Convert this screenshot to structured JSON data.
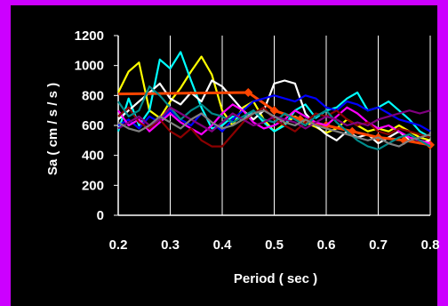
{
  "chart_data": {
    "type": "line",
    "title": "",
    "xlabel": "Period  ( sec )",
    "ylabel": "Sa  ( cm / s / s )",
    "xlim": [
      0.2,
      0.8
    ],
    "ylim": [
      0,
      1200
    ],
    "xticks": [
      "0.2",
      "0.3",
      "0.4",
      "0.5",
      "0.6",
      "0.7",
      "0.8"
    ],
    "yticks": [
      "0",
      "200",
      "400",
      "600",
      "800",
      "1000",
      "1200"
    ],
    "grid": "vertical",
    "colors": {
      "background": "#000000",
      "border": "#CC00FF",
      "axis": "#FFFFFF",
      "grid": "#FFFFFF"
    },
    "series": [
      {
        "color": "#FFFF00",
        "x": [
          0.2,
          0.22,
          0.24,
          0.26,
          0.28,
          0.3,
          0.32,
          0.34,
          0.36,
          0.38,
          0.4,
          0.42,
          0.44,
          0.46,
          0.48,
          0.5,
          0.52,
          0.54,
          0.56,
          0.58,
          0.6,
          0.62,
          0.64,
          0.66,
          0.68,
          0.7,
          0.72,
          0.74,
          0.76,
          0.78,
          0.8
        ],
        "y": [
          820,
          960,
          1020,
          700,
          650,
          760,
          850,
          960,
          1060,
          940,
          700,
          600,
          720,
          760,
          640,
          560,
          610,
          660,
          620,
          590,
          550,
          580,
          640,
          600,
          560,
          580,
          560,
          600,
          560,
          520,
          500
        ]
      },
      {
        "color": "#00FFFF",
        "x": [
          0.2,
          0.22,
          0.24,
          0.26,
          0.28,
          0.3,
          0.32,
          0.34,
          0.36,
          0.38,
          0.4,
          0.42,
          0.44,
          0.46,
          0.48,
          0.5,
          0.52,
          0.54,
          0.56,
          0.58,
          0.6,
          0.62,
          0.64,
          0.66,
          0.68,
          0.7,
          0.72,
          0.74,
          0.76,
          0.78,
          0.8
        ],
        "y": [
          560,
          780,
          600,
          700,
          1040,
          980,
          1090,
          900,
          720,
          580,
          600,
          660,
          640,
          700,
          620,
          560,
          600,
          700,
          740,
          650,
          700,
          720,
          780,
          820,
          700,
          720,
          760,
          700,
          640,
          560,
          520
        ]
      },
      {
        "color": "#FFFFFF",
        "x": [
          0.2,
          0.22,
          0.24,
          0.26,
          0.28,
          0.3,
          0.32,
          0.34,
          0.36,
          0.38,
          0.4,
          0.42,
          0.44,
          0.46,
          0.48,
          0.5,
          0.52,
          0.54,
          0.56,
          0.58,
          0.6,
          0.62,
          0.64,
          0.66,
          0.68,
          0.7,
          0.72,
          0.74,
          0.76,
          0.78,
          0.8
        ],
        "y": [
          640,
          700,
          760,
          820,
          880,
          780,
          740,
          820,
          760,
          900,
          860,
          780,
          700,
          640,
          700,
          880,
          900,
          880,
          680,
          600,
          540,
          500,
          560,
          520,
          540,
          480,
          520,
          560,
          500,
          480,
          500
        ]
      },
      {
        "color": "#FF4500",
        "x": [
          0.2,
          0.45,
          0.5,
          0.55,
          0.6,
          0.65,
          0.7,
          0.75,
          0.8
        ],
        "y": [
          810,
          820,
          700,
          640,
          600,
          560,
          520,
          500,
          470
        ]
      },
      {
        "color": "#0000FF",
        "x": [
          0.2,
          0.22,
          0.24,
          0.26,
          0.28,
          0.3,
          0.32,
          0.34,
          0.36,
          0.38,
          0.4,
          0.42,
          0.44,
          0.46,
          0.48,
          0.5,
          0.52,
          0.54,
          0.56,
          0.58,
          0.6,
          0.62,
          0.64,
          0.66,
          0.68,
          0.7,
          0.72,
          0.74,
          0.76,
          0.78,
          0.8
        ],
        "y": [
          600,
          640,
          580,
          660,
          620,
          700,
          640,
          600,
          680,
          620,
          560,
          640,
          700,
          760,
          780,
          800,
          780,
          760,
          800,
          780,
          720,
          700,
          760,
          740,
          700,
          720,
          680,
          640,
          620,
          600,
          560
        ]
      },
      {
        "color": "#FF00FF",
        "x": [
          0.2,
          0.22,
          0.24,
          0.26,
          0.28,
          0.3,
          0.32,
          0.34,
          0.36,
          0.38,
          0.4,
          0.42,
          0.44,
          0.46,
          0.48,
          0.5,
          0.52,
          0.54,
          0.56,
          0.58,
          0.6,
          0.62,
          0.64,
          0.66,
          0.68,
          0.7,
          0.72,
          0.74,
          0.76,
          0.78,
          0.8
        ],
        "y": [
          700,
          600,
          640,
          560,
          620,
          680,
          620,
          580,
          540,
          600,
          680,
          740,
          700,
          620,
          580,
          600,
          640,
          700,
          660,
          620,
          600,
          660,
          720,
          680,
          620,
          580,
          600,
          560,
          520,
          500,
          480
        ]
      },
      {
        "color": "#8B0000",
        "x": [
          0.2,
          0.22,
          0.24,
          0.26,
          0.28,
          0.3,
          0.32,
          0.34,
          0.36,
          0.38,
          0.4,
          0.42,
          0.44,
          0.46,
          0.48,
          0.5,
          0.52,
          0.54,
          0.56,
          0.58,
          0.6,
          0.62,
          0.64,
          0.66,
          0.68,
          0.7,
          0.72,
          0.74,
          0.76,
          0.78,
          0.8
        ],
        "y": [
          660,
          720,
          620,
          580,
          640,
          560,
          520,
          580,
          500,
          460,
          460,
          540,
          620,
          680,
          720,
          640,
          600,
          560,
          620,
          680,
          660,
          700,
          640,
          600,
          620,
          560,
          540,
          580,
          560,
          540,
          520
        ]
      },
      {
        "color": "#008B8B",
        "x": [
          0.2,
          0.22,
          0.24,
          0.26,
          0.28,
          0.3,
          0.32,
          0.34,
          0.36,
          0.38,
          0.4,
          0.42,
          0.44,
          0.46,
          0.48,
          0.5,
          0.52,
          0.54,
          0.56,
          0.58,
          0.6,
          0.62,
          0.64,
          0.66,
          0.68,
          0.7,
          0.72,
          0.74,
          0.76,
          0.78,
          0.8
        ],
        "y": [
          760,
          660,
          700,
          860,
          800,
          720,
          640,
          700,
          740,
          680,
          660,
          620,
          660,
          700,
          640,
          620,
          680,
          640,
          600,
          660,
          700,
          620,
          560,
          500,
          460,
          440,
          480,
          520,
          540,
          500,
          460
        ]
      },
      {
        "color": "#800080",
        "x": [
          0.2,
          0.22,
          0.24,
          0.26,
          0.28,
          0.3,
          0.32,
          0.34,
          0.36,
          0.38,
          0.4,
          0.42,
          0.44,
          0.46,
          0.48,
          0.5,
          0.52,
          0.54,
          0.56,
          0.58,
          0.6,
          0.62,
          0.64,
          0.66,
          0.68,
          0.7,
          0.72,
          0.74,
          0.76,
          0.78,
          0.8
        ],
        "y": [
          580,
          620,
          660,
          600,
          640,
          720,
          680,
          640,
          600,
          560,
          620,
          680,
          640,
          600,
          620,
          660,
          640,
          620,
          580,
          620,
          660,
          640,
          600,
          620,
          600,
          640,
          660,
          680,
          700,
          680,
          700
        ]
      },
      {
        "color": "#808080",
        "x": [
          0.2,
          0.22,
          0.24,
          0.26,
          0.28,
          0.3,
          0.32,
          0.34,
          0.36,
          0.38,
          0.4,
          0.42,
          0.44,
          0.46,
          0.48,
          0.5,
          0.52,
          0.54,
          0.56,
          0.58,
          0.6,
          0.62,
          0.64,
          0.66,
          0.68,
          0.7,
          0.72,
          0.74,
          0.76,
          0.78,
          0.8
        ],
        "y": [
          620,
          580,
          560,
          600,
          660,
          620,
          580,
          640,
          680,
          620,
          580,
          600,
          640,
          680,
          700,
          660,
          620,
          600,
          640,
          600,
          580,
          560,
          540,
          520,
          500,
          520,
          480,
          460,
          500,
          520,
          540
        ]
      }
    ]
  }
}
